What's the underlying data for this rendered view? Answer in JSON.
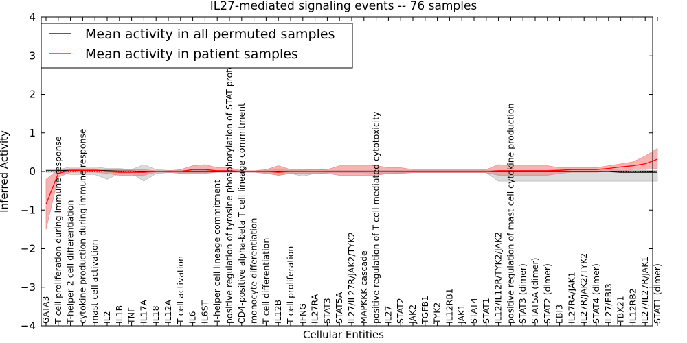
{
  "chart_data": {
    "type": "line",
    "title": "IL27-mediated signaling events -- 76 samples",
    "xlabel": "Cellular Entities",
    "ylabel": "Inferred Activity",
    "ylim": [
      -4,
      4
    ],
    "yticks": [
      "4",
      "3",
      "2",
      "1",
      "0",
      "−1",
      "−2",
      "−3",
      "−4"
    ],
    "ytick_values": [
      4,
      3,
      2,
      1,
      0,
      -1,
      -2,
      -3,
      -4
    ],
    "legend_position": "top-left",
    "categories": [
      "GATA3",
      "T cell proliferation during immune response",
      "T-helper 2 cell differentiation",
      "cytokine production during immune response",
      "mast cell activation",
      "IL2",
      "IL1B",
      "TNF",
      "IL17A",
      "IL18",
      "IL12A",
      "T cell activation",
      "IL6",
      "IL6ST",
      "T-helper cell lineage commitment",
      "positive regulation of tyrosine phosphorylation of STAT protein",
      "CD4-positive alpha-beta T cell lineage commitment",
      "monocyte differentiation",
      "T cell differentiation",
      "IL12B",
      "T cell proliferation",
      "IFNG",
      "IL27RA",
      "STAT3",
      "STAT5A",
      "IL27/IL27R/JAK2/TYK2",
      "MAPKKK cascade",
      "positive regulation of T cell mediated cytotoxicity",
      "IL27",
      "STAT2",
      "JAK2",
      "TGFB1",
      "TYK2",
      "IL12RB1",
      "JAK1",
      "STAT4",
      "STAT1",
      "IL12/IL12R/TYK2/JAK2",
      "positive regulation of mast cell cytokine production",
      "STAT3 (dimer)",
      "STAT5A (dimer)",
      "STAT2 (dimer)",
      "EBI3",
      "IL27RA/JAK1",
      "IL27R/JAK2/TYK2",
      "STAT4 (dimer)",
      "IL27/EBI3",
      "TBX21",
      "IL12RB2",
      "IL27/IL27R/JAK1",
      "STAT1 (dimer)"
    ],
    "series": [
      {
        "name": "Mean activity in all permuted samples",
        "color": "#000000",
        "band_color": "#b0b0b0",
        "values": [
          0.02,
          0.02,
          0.03,
          0.03,
          0.03,
          0.02,
          0.01,
          0.01,
          0.0,
          0.0,
          0.0,
          0.0,
          0.0,
          0.0,
          0.0,
          0.0,
          0.0,
          0.0,
          0.0,
          0.0,
          0.0,
          0.0,
          0.0,
          0.0,
          0.0,
          0.0,
          0.0,
          0.0,
          0.0,
          0.0,
          0.0,
          0.0,
          0.0,
          0.0,
          0.0,
          0.0,
          0.0,
          0.0,
          0.0,
          0.0,
          0.0,
          0.0,
          0.0,
          0.0,
          0.0,
          0.0,
          0.0,
          -0.02,
          -0.02,
          -0.02,
          -0.02
        ],
        "upper": [
          0.05,
          0.05,
          0.12,
          0.12,
          0.12,
          0.08,
          0.08,
          0.05,
          0.18,
          0.05,
          0.03,
          0.03,
          0.03,
          0.03,
          0.02,
          0.02,
          0.02,
          0.02,
          0.03,
          0.05,
          0.03,
          0.03,
          0.05,
          0.03,
          0.03,
          0.03,
          0.03,
          0.03,
          0.03,
          0.03,
          0.03,
          0.03,
          0.03,
          0.03,
          0.03,
          0.03,
          0.03,
          0.03,
          0.03,
          0.03,
          0.03,
          0.03,
          0.05,
          0.05,
          0.05,
          0.05,
          0.05,
          0.03,
          0.03,
          0.03,
          0.03
        ],
        "lower": [
          -0.02,
          -0.02,
          -0.08,
          -0.08,
          -0.08,
          -0.2,
          -0.05,
          -0.05,
          -0.25,
          -0.05,
          -0.03,
          -0.03,
          -0.03,
          -0.03,
          -0.02,
          -0.02,
          -0.02,
          -0.02,
          -0.03,
          -0.1,
          -0.05,
          -0.12,
          -0.05,
          -0.03,
          -0.03,
          -0.03,
          -0.03,
          -0.05,
          -0.05,
          -0.03,
          -0.03,
          -0.03,
          -0.03,
          -0.03,
          -0.03,
          -0.03,
          -0.03,
          -0.25,
          -0.25,
          -0.25,
          -0.25,
          -0.25,
          -0.25,
          -0.25,
          -0.25,
          -0.25,
          -0.25,
          -0.25,
          -0.25,
          -0.25,
          -0.25
        ]
      },
      {
        "name": "Mean activity in patient samples",
        "color": "#ff0000",
        "band_color": "#f08080",
        "values": [
          -0.85,
          -0.05,
          0.03,
          0.03,
          0.03,
          0.0,
          -0.02,
          -0.02,
          -0.02,
          0.0,
          0.0,
          0.0,
          0.05,
          0.05,
          0.02,
          0.02,
          0.0,
          0.0,
          0.0,
          -0.02,
          0.0,
          0.0,
          0.0,
          0.0,
          0.0,
          0.0,
          0.0,
          0.0,
          0.0,
          0.0,
          0.0,
          0.0,
          0.0,
          0.0,
          0.0,
          0.0,
          0.0,
          0.02,
          0.02,
          0.02,
          0.02,
          0.02,
          0.03,
          0.05,
          0.05,
          0.05,
          0.08,
          0.12,
          0.15,
          0.2,
          0.32
        ],
        "upper": [
          -0.2,
          0.05,
          0.07,
          0.07,
          0.07,
          0.05,
          0.05,
          0.05,
          0.05,
          0.02,
          0.02,
          0.05,
          0.15,
          0.18,
          0.1,
          0.1,
          0.02,
          0.02,
          0.05,
          0.15,
          0.05,
          0.05,
          0.05,
          0.05,
          0.15,
          0.15,
          0.15,
          0.15,
          0.1,
          0.1,
          0.05,
          0.05,
          0.05,
          0.05,
          0.05,
          0.05,
          0.05,
          0.18,
          0.15,
          0.15,
          0.15,
          0.15,
          0.1,
          0.1,
          0.1,
          0.1,
          0.15,
          0.2,
          0.25,
          0.4,
          0.6
        ],
        "lower": [
          -1.5,
          -0.15,
          -0.02,
          -0.02,
          -0.02,
          -0.05,
          -0.1,
          -0.1,
          -0.1,
          -0.02,
          -0.02,
          -0.05,
          -0.05,
          -0.05,
          -0.02,
          -0.02,
          -0.02,
          -0.02,
          -0.05,
          -0.1,
          -0.05,
          -0.05,
          -0.05,
          -0.05,
          -0.1,
          -0.1,
          -0.1,
          -0.1,
          -0.05,
          -0.05,
          -0.03,
          -0.03,
          -0.03,
          -0.03,
          -0.03,
          -0.03,
          -0.03,
          -0.1,
          -0.1,
          -0.1,
          -0.1,
          -0.1,
          -0.05,
          -0.02,
          -0.02,
          -0.02,
          0.0,
          0.0,
          0.05,
          0.05,
          0.08
        ]
      }
    ]
  }
}
